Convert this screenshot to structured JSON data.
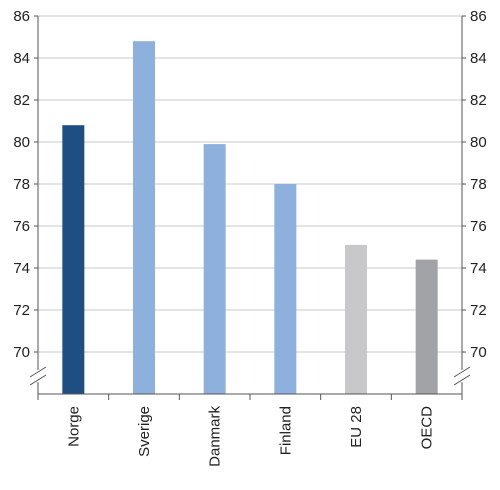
{
  "chart_data": {
    "type": "bar",
    "title": "",
    "xlabel": "",
    "ylabel": "",
    "categories": [
      "Norge",
      "Sverige",
      "Danmark",
      "Finland",
      "EU 28",
      "OECD"
    ],
    "values": [
      80.8,
      84.8,
      79.9,
      78.0,
      75.1,
      74.4
    ],
    "ylim": [
      68,
      86
    ],
    "yticks": [
      70,
      72,
      74,
      76,
      78,
      80,
      82,
      84,
      86
    ],
    "ytick_labels": [
      "70",
      "72",
      "74",
      "76",
      "78",
      "80",
      "82",
      "84",
      "86"
    ],
    "axis_break": true,
    "grid": true,
    "legend": "none",
    "colors": [
      "#1f4e82",
      "#8eb0dd",
      "#8eb0dd",
      "#8eb0dd",
      "#c8c8ca",
      "#a2a3a6"
    ]
  }
}
